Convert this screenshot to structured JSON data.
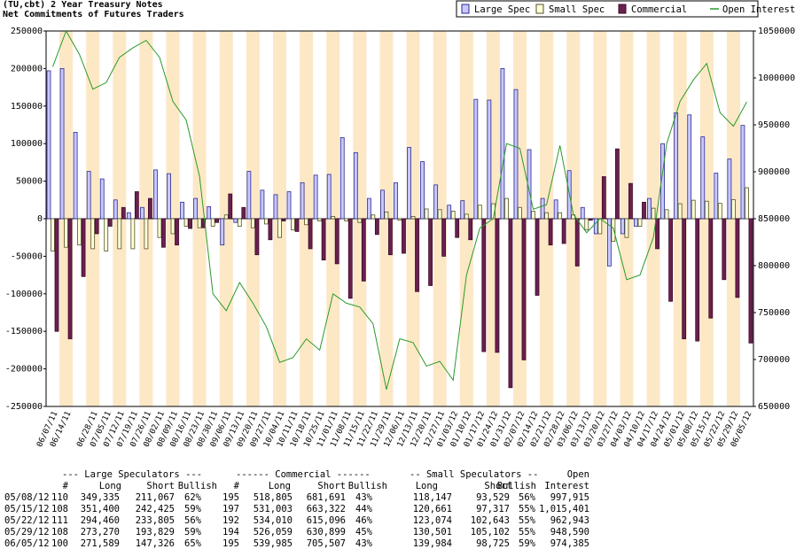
{
  "chart_data": {
    "type": "bar",
    "title": "(TU,cbt) 2 Year Treasury Notes",
    "subtitle": "Net Commitments of Futures Traders",
    "categories": [
      "06/07/11",
      "06/14/11",
      null,
      "06/28/11",
      "07/05/11",
      "07/12/11",
      "07/19/11",
      "07/26/11",
      "08/02/11",
      "08/09/11",
      "08/16/11",
      "08/23/11",
      "08/30/11",
      "09/06/11",
      "09/13/11",
      "09/20/11",
      "09/27/11",
      "10/04/11",
      "10/11/11",
      "10/18/11",
      "10/25/11",
      "11/01/11",
      "11/08/11",
      "11/15/11",
      "11/22/11",
      "11/29/11",
      "12/06/11",
      "12/13/11",
      "12/20/11",
      "12/27/11",
      "01/03/12",
      "01/10/12",
      "01/17/12",
      "01/24/12",
      "01/31/12",
      "02/07/12",
      "02/14/12",
      "02/21/12",
      "02/28/12",
      "03/06/12",
      "03/13/12",
      "03/20/12",
      "03/27/12",
      "04/03/12",
      "04/10/12",
      "04/17/12",
      "04/24/12",
      "05/01/12",
      "05/08/12",
      "05/15/12",
      "05/22/12",
      "05/29/12",
      "06/05/12"
    ],
    "series": [
      {
        "name": "Large Spec",
        "color": "#c8c8ff",
        "values": [
          197000,
          200000,
          115000,
          63000,
          53000,
          25000,
          8000,
          15000,
          65000,
          60000,
          22000,
          27000,
          16000,
          -35000,
          -5000,
          63000,
          38000,
          32000,
          36000,
          48000,
          58000,
          59000,
          108000,
          88000,
          27000,
          38000,
          48000,
          95000,
          76000,
          45000,
          18000,
          24000,
          159000,
          158000,
          200000,
          172000,
          92000,
          27000,
          25000,
          64000,
          15000,
          -20000,
          -63000,
          -20000,
          -10000,
          27000,
          100000,
          141000,
          138268,
          108975,
          60655,
          79441,
          124263
        ]
      },
      {
        "name": "Small Spec",
        "color": "#ffffdc",
        "values": [
          -43000,
          -38000,
          -35000,
          -40000,
          -43000,
          -40000,
          -40000,
          -40000,
          -25000,
          -20000,
          -10000,
          -12000,
          -10000,
          5000,
          -10000,
          -12000,
          -7000,
          -25000,
          -15000,
          -8000,
          -3000,
          3000,
          -3000,
          -5000,
          5000,
          9000,
          -2000,
          3000,
          13000,
          12000,
          10000,
          6000,
          18000,
          20000,
          27000,
          15000,
          10000,
          8000,
          8000,
          5000,
          -15000,
          -20000,
          -30000,
          -25000,
          -10000,
          14000,
          12000,
          20000,
          24618,
          23344,
          20431,
          25399,
          41259
        ]
      },
      {
        "name": "Commercial",
        "color": "#6b2050",
        "values": [
          -150000,
          -160000,
          -77000,
          -20000,
          -10000,
          15000,
          36000,
          27000,
          -38000,
          -35000,
          -13000,
          -12000,
          -5000,
          33000,
          15000,
          -48000,
          -28000,
          -3000,
          -17000,
          -40000,
          -55000,
          -60000,
          -106000,
          -83000,
          -21000,
          -48000,
          -46000,
          -97000,
          -89000,
          -50000,
          -25000,
          -28000,
          -177000,
          -178000,
          -225000,
          -188000,
          -102000,
          -35000,
          -33000,
          -63000,
          -2000,
          56000,
          93000,
          47000,
          22000,
          -40000,
          -110000,
          -160000,
          -162886,
          -132319,
          -81086,
          -104840,
          -165522
        ]
      },
      {
        "name": "Open Interest",
        "color": "#2a9a2a",
        "type": "line",
        "axis": "y2",
        "values": [
          1012000,
          1050000,
          1025000,
          988000,
          995000,
          1022000,
          1032000,
          1040000,
          1022000,
          975000,
          955000,
          895000,
          770000,
          752000,
          782000,
          760000,
          735000,
          697000,
          702000,
          722000,
          710000,
          770000,
          760000,
          756000,
          738000,
          668000,
          722000,
          718000,
          693000,
          698000,
          678000,
          790000,
          840000,
          850000,
          930000,
          925000,
          860000,
          865000,
          928000,
          855000,
          835000,
          850000,
          840000,
          785000,
          790000,
          830000,
          930000,
          975000,
          997915,
          1015401,
          962943,
          948590,
          974385
        ]
      }
    ],
    "ylim": [
      -250000,
      250000
    ],
    "yticks": [
      -250000,
      -200000,
      -150000,
      -100000,
      -50000,
      0,
      50000,
      100000,
      150000,
      200000,
      250000
    ],
    "y2lim": [
      650000,
      1050000
    ],
    "y2ticks": [
      650000,
      700000,
      750000,
      800000,
      850000,
      900000,
      950000,
      1000000,
      1050000
    ],
    "legend": "top-right"
  },
  "table": {
    "groups": [
      "--- Large Speculators ---",
      "------ Commercial ------",
      "-- Small Speculators --",
      "Open"
    ],
    "columns": [
      "#",
      "Long",
      "Short",
      "Bullish",
      "#",
      "Long",
      "Short",
      "Bullish",
      "Long",
      "Short",
      "Bullish",
      "Interest"
    ],
    "rows": [
      [
        "05/08/12",
        "110",
        "349,335",
        "211,067",
        "62%",
        "195",
        "518,805",
        "681,691",
        "43%",
        "118,147",
        "93,529",
        "56%",
        "997,915"
      ],
      [
        "05/15/12",
        "108",
        "351,400",
        "242,425",
        "59%",
        "197",
        "531,003",
        "663,322",
        "44%",
        "120,661",
        "97,317",
        "55%",
        "1,015,401"
      ],
      [
        "05/22/12",
        "111",
        "294,460",
        "233,805",
        "56%",
        "192",
        "534,010",
        "615,096",
        "46%",
        "123,074",
        "102,643",
        "55%",
        "962,943"
      ],
      [
        "05/29/12",
        "108",
        "273,270",
        "193,829",
        "59%",
        "194",
        "526,059",
        "630,899",
        "45%",
        "130,501",
        "105,102",
        "55%",
        "948,590"
      ],
      [
        "06/05/12",
        "100",
        "271,589",
        "147,326",
        "65%",
        "195",
        "539,985",
        "705,507",
        "43%",
        "139,984",
        "98,725",
        "59%",
        "974,385"
      ]
    ]
  }
}
